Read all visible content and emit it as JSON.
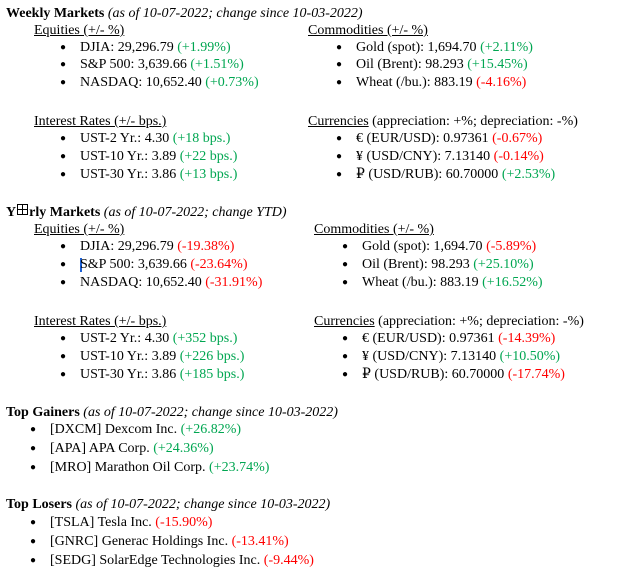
{
  "weekly": {
    "title": "Weekly Markets",
    "subtitle": " (as of 10-07-2022; change since 10-03-2022)",
    "equities": {
      "heading": "Equities (+/- %)",
      "items": [
        {
          "label": "DJIA: 29,296.79 ",
          "change": "(+1.99%)"
        },
        {
          "label": "S&P 500: 3,639.66 ",
          "change": "(+1.51%)"
        },
        {
          "label": "NASDAQ: 10,652.40 ",
          "change": "(+0.73%)"
        }
      ]
    },
    "commodities": {
      "heading": "Commodities (+/- %)",
      "items": [
        {
          "label": "Gold (spot): 1,694.70 ",
          "change": "(+2.11%)"
        },
        {
          "label": "Oil (Brent): 98.293 ",
          "change": "(+15.45%)"
        },
        {
          "label": "Wheat (/bu.): 883.19 ",
          "change": "(-4.16%)"
        }
      ]
    },
    "rates": {
      "heading": "Interest Rates (+/- bps.)",
      "items": [
        {
          "label": "UST-2 Yr.: 4.30 ",
          "change": "(+18 bps.)"
        },
        {
          "label": "UST-10 Yr.: 3.89 ",
          "change": "(+22 bps.)"
        },
        {
          "label": "UST-30 Yr.: 3.86 ",
          "change": "(+13 bps.)"
        }
      ]
    },
    "currencies": {
      "heading": "Currencies",
      "heading_rest": " (appreciation: +%; depreciation: -%)",
      "items": [
        {
          "label": "€ (EUR/USD): 0.97361 ",
          "change": "(-0.67%)"
        },
        {
          "label": "¥ (USD/CNY): 7.13140 ",
          "change": "(-0.14%)"
        },
        {
          "label": "₽ (USD/RUB): 60.70000 ",
          "change": "(+2.53%)"
        }
      ]
    }
  },
  "yearly": {
    "title_pre": "Y",
    "title_post": "rly Markets",
    "subtitle": " (as of 10-07-2022; change YTD)",
    "equities": {
      "heading": "Equities (+/- %)",
      "items": [
        {
          "label": "DJIA: 29,296.79 ",
          "change": "(-19.38%)"
        },
        {
          "label": "S&P 500: 3,639.66 ",
          "change": "(-23.64%)"
        },
        {
          "label": "NASDAQ: 10,652.40 ",
          "change": "(-31.91%)"
        }
      ]
    },
    "commodities": {
      "heading": "Commodities (+/- %)",
      "items": [
        {
          "label": "Gold (spot): 1,694.70 ",
          "change": "(-5.89%)"
        },
        {
          "label": "Oil (Brent): 98.293 ",
          "change": "(+25.10%)"
        },
        {
          "label": "Wheat (/bu.): 883.19 ",
          "change": "(+16.52%)"
        }
      ]
    },
    "rates": {
      "heading": "Interest Rates (+/- bps.)",
      "items": [
        {
          "label": "UST-2 Yr.: 4.30 ",
          "change": "(+352 bps.)"
        },
        {
          "label": "UST-10 Yr.: 3.89 ",
          "change": "(+226 bps.)"
        },
        {
          "label": "UST-30 Yr.: 3.86 ",
          "change": "(+185 bps.)"
        }
      ]
    },
    "currencies": {
      "heading": "Currencies",
      "heading_rest": " (appreciation: +%; depreciation: -%)",
      "items": [
        {
          "label": "€ (EUR/USD): 0.97361 ",
          "change": "(-14.39%)"
        },
        {
          "label": "¥ (USD/CNY): 7.13140 ",
          "change": "(+10.50%)"
        },
        {
          "label": "₽ (USD/RUB): 60.70000 ",
          "change": "(-17.74%)"
        }
      ]
    }
  },
  "gainers": {
    "title": "Top Gainers",
    "subtitle": " (as of 10-07-2022; change since 10-03-2022)",
    "items": [
      {
        "label": "[DXCM] Dexcom Inc. ",
        "change": "(+26.82%)"
      },
      {
        "label": "[APA] APA Corp. ",
        "change": "(+24.36%)"
      },
      {
        "label": "[MRO] Marathon Oil Corp. ",
        "change": "(+23.74%)"
      }
    ]
  },
  "losers": {
    "title": "Top Losers",
    "subtitle": " (as of 10-07-2022; change since 10-03-2022)",
    "items": [
      {
        "label": "[TSLA] Tesla Inc. ",
        "change": "(-15.90%)"
      },
      {
        "label": "[GNRC] Generac Holdings Inc. ",
        "change": "(-13.41%)"
      },
      {
        "label": "[SEDG] SolarEdge Technologies Inc. ",
        "change": "(-9.44%)"
      }
    ]
  },
  "colors": {
    "positive": "#00a651",
    "negative": "#ff0000"
  },
  "bullet_glyph": "●"
}
